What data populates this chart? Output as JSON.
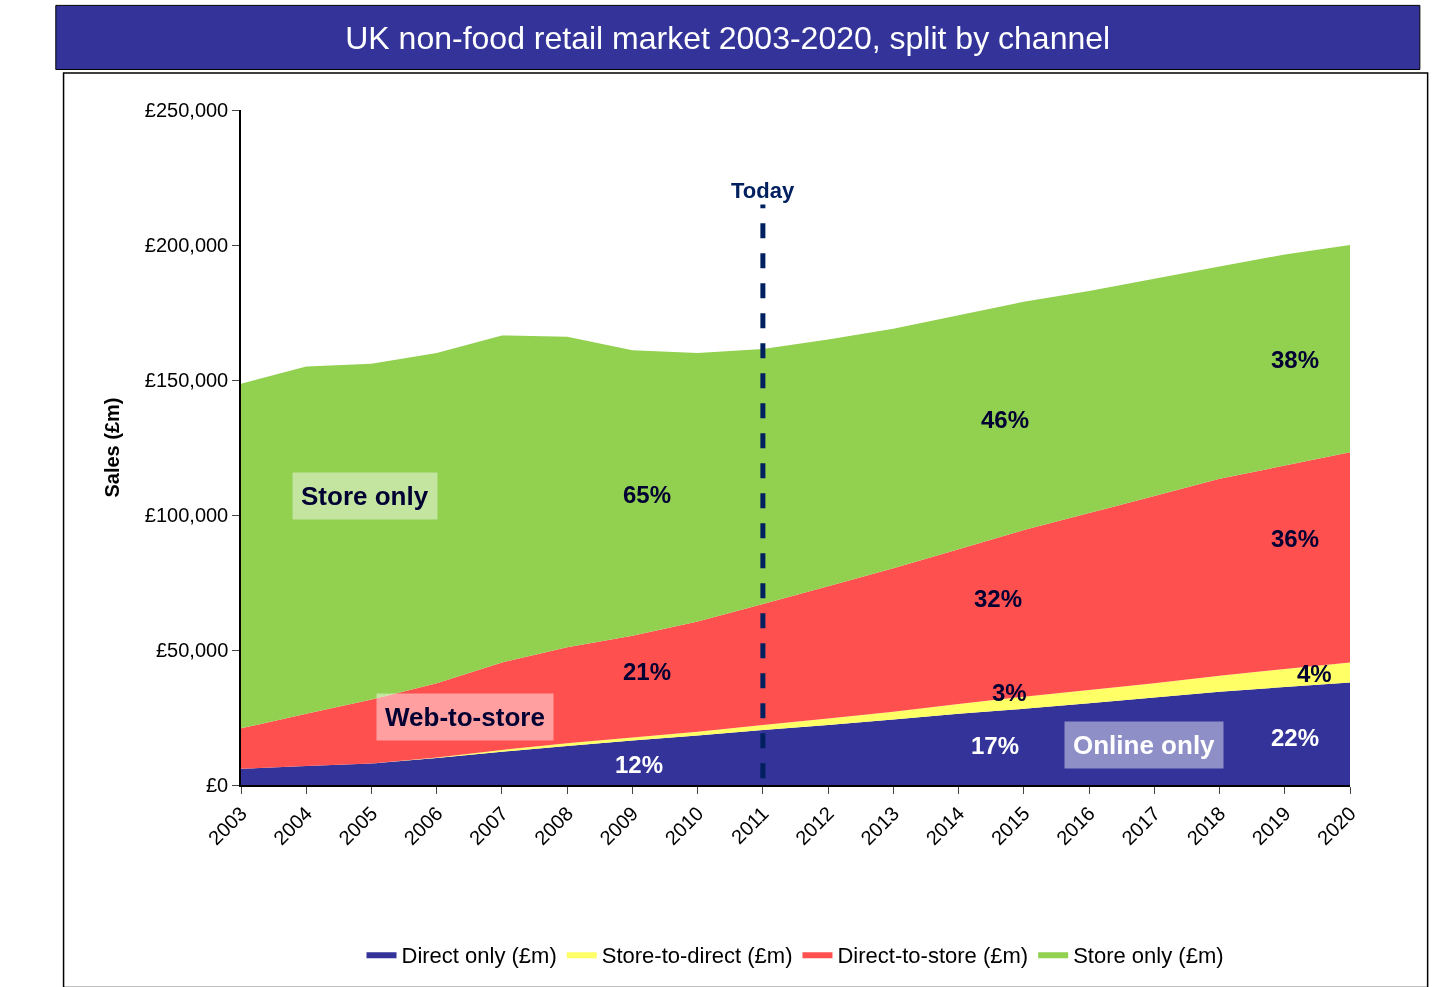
{
  "chart_data": {
    "type": "area",
    "stacked": true,
    "title": "UK non-food retail market 2003-2020, split by channel",
    "ylabel": "Sales (£m)",
    "x": [
      2003,
      2004,
      2005,
      2006,
      2007,
      2008,
      2009,
      2010,
      2011,
      2012,
      2013,
      2014,
      2015,
      2016,
      2017,
      2018,
      2019,
      2020
    ],
    "xlim": [
      2003,
      2020
    ],
    "xticks": [
      2003,
      2004,
      2005,
      2006,
      2007,
      2008,
      2009,
      2010,
      2011,
      2012,
      2013,
      2014,
      2015,
      2016,
      2017,
      2018,
      2019,
      2020
    ],
    "ylim": [
      0,
      250000
    ],
    "yticks": [
      {
        "value": 0,
        "label": "£0"
      },
      {
        "value": 50000,
        "label": "£50,000"
      },
      {
        "value": 100000,
        "label": "£100,000"
      },
      {
        "value": 150000,
        "label": "£150,000"
      },
      {
        "value": 200000,
        "label": "£200,000"
      },
      {
        "value": 250000,
        "label": "£250,000"
      }
    ],
    "series": [
      {
        "name": "Direct only (£m)",
        "color": "#333399",
        "values": [
          6000,
          7000,
          8000,
          10000,
          12300,
          14400,
          16500,
          18300,
          20400,
          22200,
          24300,
          26400,
          28200,
          30300,
          32400,
          34500,
          36300,
          38000
        ]
      },
      {
        "name": "Store-to-direct (£m)",
        "color": "#ffff66",
        "values": [
          0,
          0,
          0,
          200,
          700,
          1100,
          1100,
          1400,
          1800,
          2400,
          2800,
          3600,
          4500,
          4900,
          5300,
          6000,
          6700,
          7400
        ]
      },
      {
        "name": "Direct-to-store (£m)",
        "color": "#ff5050",
        "values": [
          15000,
          19400,
          23700,
          27500,
          32400,
          35500,
          37700,
          40900,
          44800,
          49000,
          53200,
          57300,
          61700,
          65500,
          69300,
          72900,
          75300,
          77800
        ]
      },
      {
        "name": "Store only (£m)",
        "color": "#92d050",
        "values": [
          127600,
          128600,
          124300,
          122300,
          121100,
          115000,
          105700,
          99400,
          94500,
          91400,
          88700,
          86700,
          84600,
          82300,
          80500,
          78600,
          78200,
          76800
        ]
      }
    ],
    "ref_lines": [
      {
        "axis": "x",
        "value": 2011,
        "label": "Today",
        "color": "#002060",
        "line_style": "dashed"
      }
    ],
    "annotations": [
      "65%",
      "21%",
      "12%",
      "46%",
      "32%",
      "3%",
      "17%",
      "38%",
      "36%",
      "4%",
      "22%",
      "Store only",
      "Web-to-store",
      "Online only"
    ],
    "legend": "bottom"
  }
}
